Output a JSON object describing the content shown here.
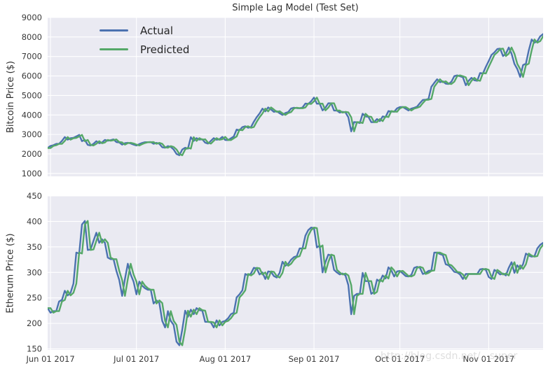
{
  "figure": {
    "title": "Simple Lag Model (Test Set)",
    "watermark": "http://blog.csdn.net/...super",
    "background": "#ffffff",
    "axes_background": "#EAEAF2",
    "grid_color": "#ffffff",
    "text_color": "#303030",
    "actual_color": "#4C72B0",
    "predicted_color": "#55A868"
  },
  "chart_data": [
    {
      "type": "line",
      "title": "Simple Lag Model (Test Set)",
      "ylabel": "Bitcoin Price ($)",
      "xlabel": "",
      "grid": true,
      "ylim": [
        850,
        9000
      ],
      "yticks": [
        1000,
        2000,
        3000,
        4000,
        5000,
        6000,
        7000,
        8000,
        9000
      ],
      "x_ticks": {
        "labels": [
          "Jun 01 2017",
          "Jul 01 2017",
          "Aug 01 2017",
          "Sep 01 2017",
          "Oct 01 2017",
          "Nov 01 2017"
        ],
        "day_offsets": [
          1,
          31,
          62,
          93,
          123,
          154
        ],
        "total_days": 173,
        "show_labels": false
      },
      "legend": {
        "position": "upper left"
      },
      "series": [
        {
          "name": "Actual",
          "color": "#4C72B0",
          "values": [
            2303,
            2412,
            2448,
            2516,
            2518,
            2670,
            2863,
            2732,
            2805,
            2823,
            2900,
            2974,
            2655,
            2717,
            2464,
            2433,
            2518,
            2655,
            2548,
            2589,
            2721,
            2677,
            2705,
            2744,
            2608,
            2590,
            2478,
            2553,
            2574,
            2539,
            2480,
            2434,
            2506,
            2564,
            2601,
            2601,
            2608,
            2518,
            2571,
            2518,
            2344,
            2320,
            2400,
            2357,
            2229,
            1998,
            1929,
            2228,
            2318,
            2273,
            2862,
            2667,
            2810,
            2730,
            2754,
            2576,
            2529,
            2671,
            2809,
            2726,
            2757,
            2875,
            2718,
            2710,
            2804,
            2895,
            3252,
            3213,
            3378,
            3419,
            3342,
            3381,
            3650,
            3884,
            4073,
            4325,
            4181,
            4387,
            4280,
            4160,
            4193,
            4087,
            4001,
            4100,
            4151,
            4334,
            4371,
            4352,
            4345,
            4384,
            4583,
            4565,
            4703,
            4892,
            4578,
            4582,
            4236,
            4376,
            4597,
            4599,
            4228,
            4226,
            4122,
            4161,
            4130,
            3882,
            3154,
            3637,
            3625,
            3582,
            4065,
            3924,
            3905,
            3631,
            3630,
            3792,
            3682,
            3926,
            3892,
            4200,
            4174,
            4163,
            4338,
            4403,
            4409,
            4317,
            4229,
            4328,
            4370,
            4426,
            4610,
            4772,
            4781,
            4826,
            5446,
            5647,
            5831,
            5678,
            5725,
            5605,
            5590,
            5708,
            5993,
            6031,
            5983,
            5930,
            5526,
            5750,
            5904,
            5780,
            5753,
            6153,
            6130,
            6468,
            6767,
            7078,
            7207,
            7379,
            7407,
            7022,
            7144,
            7459,
            7143,
            6618,
            6357,
            5950,
            6559,
            6635,
            7315,
            7871,
            7708,
            7790,
            8036,
            8150
          ]
        },
        {
          "name": "Predicted",
          "color": "#55A868",
          "derivation": "simple lag model: predicted[t] = actual[t-1], series shifted right by 1 day",
          "values": "derived:lag1"
        }
      ]
    },
    {
      "type": "line",
      "title": "",
      "ylabel": "Etherum Price ($)",
      "xlabel": "",
      "grid": true,
      "ylim": [
        148,
        450
      ],
      "yticks": [
        150,
        200,
        250,
        300,
        350,
        400,
        450
      ],
      "x_ticks": {
        "labels": [
          "Jun 01 2017",
          "Jul 01 2017",
          "Aug 01 2017",
          "Sep 01 2017",
          "Oct 01 2017",
          "Nov 01 2017"
        ],
        "day_offsets": [
          1,
          31,
          62,
          93,
          123,
          154
        ],
        "total_days": 173,
        "show_labels": true
      },
      "legend": {
        "position": "none"
      },
      "series": [
        {
          "name": "Actual",
          "color": "#4C72B0",
          "values": [
            230,
            221,
            224,
            224,
            243,
            246,
            264,
            255,
            260,
            278,
            339,
            337,
            394,
            401,
            344,
            345,
            362,
            378,
            358,
            365,
            358,
            329,
            326,
            326,
            303,
            285,
            254,
            287,
            317,
            296,
            282,
            257,
            282,
            274,
            269,
            266,
            266,
            239,
            245,
            240,
            205,
            192,
            224,
            205,
            197,
            164,
            157,
            188,
            225,
            213,
            227,
            218,
            230,
            226,
            225,
            203,
            203,
            202,
            192,
            206,
            196,
            203,
            205,
            210,
            218,
            221,
            251,
            257,
            265,
            297,
            294,
            298,
            309,
            308,
            296,
            300,
            287,
            302,
            301,
            293,
            290,
            299,
            321,
            313,
            317,
            325,
            330,
            332,
            347,
            347,
            372,
            383,
            388,
            387,
            349,
            353,
            300,
            320,
            335,
            333,
            305,
            300,
            296,
            298,
            294,
            275,
            218,
            254,
            258,
            258,
            299,
            283,
            283,
            258,
            262,
            286,
            282,
            294,
            288,
            310,
            304,
            292,
            302,
            303,
            298,
            293,
            292,
            295,
            309,
            311,
            309,
            297,
            299,
            303,
            304,
            339,
            339,
            336,
            334,
            316,
            314,
            308,
            301,
            300,
            296,
            287,
            297,
            297,
            297,
            297,
            297,
            306,
            307,
            305,
            291,
            287,
            305,
            301,
            296,
            298,
            294,
            309,
            320,
            299,
            314,
            307,
            316,
            337,
            333,
            331,
            332,
            347,
            354,
            358
          ]
        },
        {
          "name": "Predicted",
          "color": "#55A868",
          "derivation": "simple lag model: predicted[t] = actual[t-1], series shifted right by 1 day",
          "values": "derived:lag1"
        }
      ]
    }
  ]
}
